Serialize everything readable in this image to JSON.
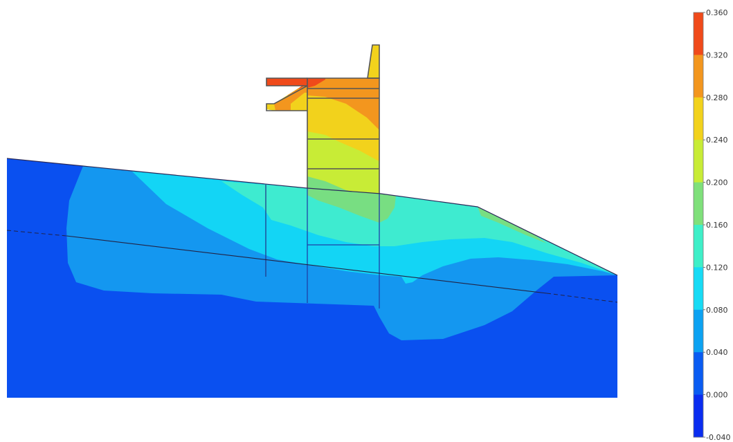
{
  "colorbar": {
    "min": -0.04,
    "max": 0.36,
    "labels": [
      "0.360",
      "0.320",
      "0.280",
      "0.240",
      "0.200",
      "0.160",
      "0.120",
      "0.080",
      "0.040",
      "0.000",
      "-0.040"
    ],
    "band_colors": [
      "#F04A1A",
      "#F3961E",
      "#F2D21C",
      "#C8EC36",
      "#7FE07A",
      "#3EEFC8",
      "#17DBF5",
      "#0CA2F2",
      "#0A5CF2",
      "#0A2DF0"
    ]
  },
  "field_colors": {
    "level_0_000_0_040": "#0A50F0",
    "level_0_040_0_080": "#1497F0",
    "level_0_080_0_120": "#13D5F5",
    "level_0_120_0_160": "#3EEBD0",
    "level_0_160_0_200": "#78DE82",
    "level_0_200_0_240": "#C8EC36",
    "level_0_240_0_280": "#F2D21C",
    "level_0_280_0_320": "#F3961E",
    "level_0_320_0_360": "#F04A1A"
  }
}
